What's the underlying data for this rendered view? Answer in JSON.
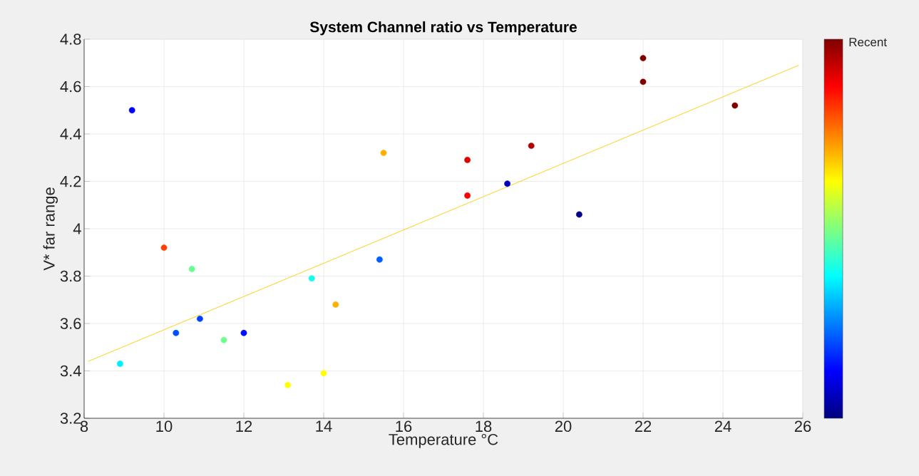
{
  "chart_data": {
    "type": "scatter",
    "title": "System Channel ratio vs Temperature",
    "xlabel": "Temperature °C",
    "ylabel": "V* far range",
    "clabel": "Recent",
    "xlim": [
      8,
      26
    ],
    "xticks": [
      8,
      10,
      12,
      14,
      16,
      18,
      20,
      22,
      24,
      26
    ],
    "ylim": [
      3.2,
      4.8
    ],
    "yticks": [
      3.2,
      3.4,
      3.6,
      3.8,
      4,
      4.2,
      4.4,
      4.6,
      4.8
    ],
    "grid": true,
    "series": [
      {
        "marker": "circle",
        "x": [
          8.9,
          9.2,
          10.0,
          10.3,
          10.7,
          10.9,
          11.5,
          12.0,
          13.1,
          13.7,
          14.0,
          14.3,
          15.4,
          15.5,
          17.6,
          17.6,
          18.6,
          19.2,
          20.4,
          22.0,
          22.0,
          24.3
        ],
        "values": [
          3.43,
          4.5,
          3.92,
          3.56,
          3.83,
          3.62,
          3.53,
          3.56,
          3.34,
          3.79,
          3.39,
          3.68,
          3.87,
          4.32,
          4.29,
          4.14,
          4.19,
          4.35,
          4.06,
          4.72,
          4.62,
          4.52
        ],
        "colors": [
          "#00eeff",
          "#0000ff",
          "#ff4000",
          "#0050ff",
          "#66ff90",
          "#0040ff",
          "#70ff8f",
          "#0010ff",
          "#ffff00",
          "#10ffef",
          "#ffff00",
          "#ffb000",
          "#0060ff",
          "#ffb000",
          "#e00000",
          "#ff0000",
          "#0000c0",
          "#b00000",
          "#00008f",
          "#800000",
          "#800000",
          "#800000"
        ]
      },
      {
        "type": "line",
        "x": [
          8.1,
          25.9
        ],
        "values": [
          3.44,
          4.69
        ],
        "color": "#ffcc00",
        "line_style": "solid",
        "marker": "none"
      }
    ]
  }
}
